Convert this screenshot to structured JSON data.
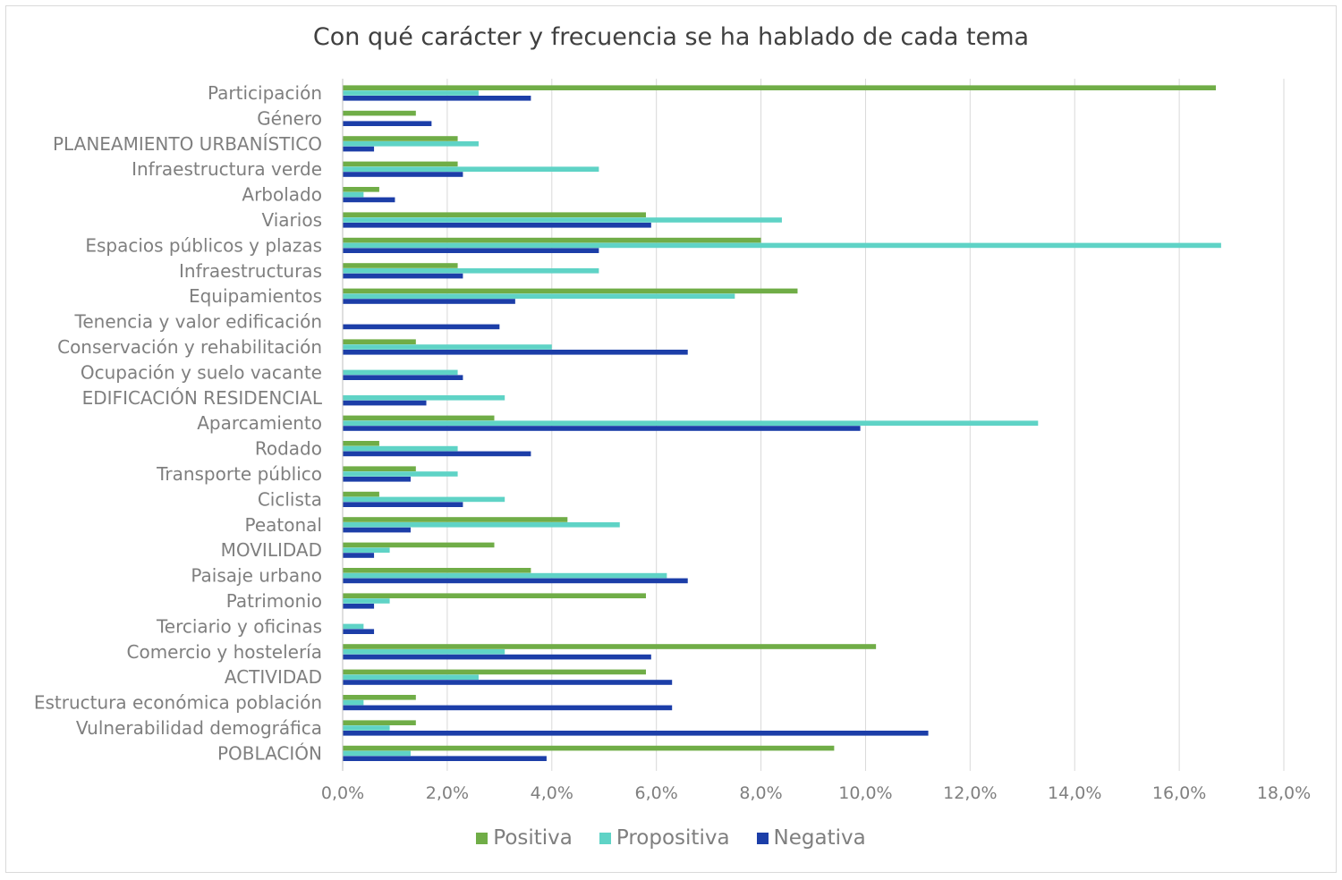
{
  "chart_data": {
    "type": "bar",
    "orientation": "horizontal",
    "title": "Con qué carácter y frecuencia se ha hablado de cada tema",
    "xlabel": "",
    "ylabel": "",
    "xlim": [
      0,
      18
    ],
    "x_tick_values": [
      0,
      2,
      4,
      6,
      8,
      10,
      12,
      14,
      16,
      18
    ],
    "x_tick_labels": [
      "0,0%",
      "2,0%",
      "4,0%",
      "6,0%",
      "8,0%",
      "10,0%",
      "12,0%",
      "14,0%",
      "16,0%",
      "18,0%"
    ],
    "grid": true,
    "legend_position": "bottom",
    "categories": [
      "Participación",
      "Género",
      "PLANEAMIENTO URBANÍSTICO",
      "Infraestructura verde",
      "Arbolado",
      "Viarios",
      "Espacios públicos y plazas",
      "Infraestructuras",
      "Equipamientos",
      "Tenencia y valor edificación",
      "Conservación y rehabilitación",
      "Ocupación y suelo vacante",
      "EDIFICACIÓN RESIDENCIAL",
      "Aparcamiento",
      "Rodado",
      "Transporte público",
      "Ciclista",
      "Peatonal",
      "MOVILIDAD",
      "Paisaje urbano",
      "Patrimonio",
      "Terciario y oficinas",
      "Comercio y hostelería",
      "ACTIVIDAD",
      "Estructura económica población",
      "Vulnerabilidad demográfica",
      "POBLACIÓN"
    ],
    "series": [
      {
        "name": "Positiva",
        "color": "#70ad47",
        "values": [
          16.7,
          1.4,
          2.2,
          2.2,
          0.7,
          5.8,
          8.0,
          2.2,
          8.7,
          0.0,
          1.4,
          0.0,
          0.0,
          2.9,
          0.7,
          1.4,
          0.7,
          4.3,
          2.9,
          3.6,
          5.8,
          0.0,
          10.2,
          5.8,
          1.4,
          1.4,
          9.4
        ]
      },
      {
        "name": "Propositiva",
        "color": "#5fd3c6",
        "values": [
          2.6,
          0.0,
          2.6,
          4.9,
          0.4,
          8.4,
          16.8,
          4.9,
          7.5,
          0.0,
          4.0,
          2.2,
          3.1,
          13.3,
          2.2,
          2.2,
          3.1,
          5.3,
          0.9,
          6.2,
          0.9,
          0.4,
          3.1,
          2.6,
          0.4,
          0.9,
          1.3
        ]
      },
      {
        "name": "Negativa",
        "color": "#1c3ea8",
        "values": [
          3.6,
          1.7,
          0.6,
          2.3,
          1.0,
          5.9,
          4.9,
          2.3,
          3.3,
          3.0,
          6.6,
          2.3,
          1.6,
          9.9,
          3.6,
          1.3,
          2.3,
          1.3,
          0.6,
          6.6,
          0.6,
          0.6,
          5.9,
          6.3,
          6.3,
          11.2,
          3.9
        ]
      }
    ]
  }
}
